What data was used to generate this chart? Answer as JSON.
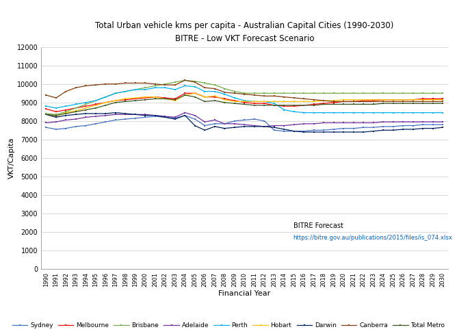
{
  "title_line1": "Total Urban vehicle kms per capita - Australian Capital Cities (1990-2030)",
  "title_line2": "BITRE - Low VKT Forecast Scenario",
  "xlabel": "Financial Year",
  "ylabel": "VKT/Capita",
  "annotation_line1": "BITRE Forecast",
  "annotation_line2": "https://bitre.gov.au/publications/2015/files/is_074.xlsx",
  "ylim": [
    0,
    12000
  ],
  "yticks": [
    0,
    1000,
    2000,
    3000,
    4000,
    5000,
    6000,
    7000,
    8000,
    9000,
    10000,
    11000,
    12000
  ],
  "years": [
    1990,
    1991,
    1992,
    1993,
    1994,
    1995,
    1996,
    1997,
    1998,
    1999,
    2000,
    2001,
    2002,
    2003,
    2004,
    2005,
    2006,
    2007,
    2008,
    2009,
    2010,
    2011,
    2012,
    2013,
    2014,
    2015,
    2016,
    2017,
    2018,
    2019,
    2020,
    2021,
    2022,
    2023,
    2024,
    2025,
    2026,
    2027,
    2028,
    2029,
    2030
  ],
  "series": {
    "Sydney": {
      "color": "#4472C4",
      "data": [
        7650,
        7550,
        7600,
        7700,
        7750,
        7850,
        7950,
        8050,
        8100,
        8150,
        8200,
        8250,
        8200,
        8150,
        8300,
        8100,
        7750,
        7850,
        7850,
        8000,
        8050,
        8100,
        8000,
        7500,
        7450,
        7450,
        7450,
        7500,
        7500,
        7550,
        7600,
        7600,
        7650,
        7650,
        7700,
        7700,
        7750,
        7750,
        7800,
        7800,
        7800
      ]
    },
    "Melbourne": {
      "color": "#FF0000",
      "data": [
        8650,
        8500,
        8600,
        8700,
        8800,
        8900,
        9000,
        9100,
        9150,
        9200,
        9250,
        9300,
        9250,
        9200,
        9500,
        9500,
        9300,
        9300,
        9200,
        9100,
        9000,
        8950,
        8950,
        8850,
        8800,
        8800,
        8850,
        8900,
        8950,
        9000,
        9050,
        9050,
        9100,
        9100,
        9150,
        9150,
        9150,
        9150,
        9200,
        9200,
        9200
      ]
    },
    "Brisbane": {
      "color": "#70AD47",
      "data": [
        8400,
        8350,
        8500,
        8700,
        8900,
        9100,
        9300,
        9500,
        9600,
        9700,
        9800,
        9900,
        10000,
        10100,
        10200,
        10150,
        10050,
        9950,
        9750,
        9600,
        9500,
        9500,
        9500,
        9500,
        9500,
        9500,
        9500,
        9500,
        9500,
        9500,
        9500,
        9500,
        9500,
        9500,
        9500,
        9500,
        9500,
        9500,
        9500,
        9500,
        9500
      ]
    },
    "Adelaide": {
      "color": "#7030A0",
      "data": [
        7900,
        7950,
        8050,
        8100,
        8200,
        8250,
        8300,
        8350,
        8350,
        8350,
        8350,
        8300,
        8250,
        8200,
        8450,
        8300,
        7950,
        8050,
        7850,
        7850,
        7800,
        7750,
        7700,
        7750,
        7750,
        7800,
        7850,
        7850,
        7900,
        7900,
        7900,
        7900,
        7900,
        7900,
        7950,
        7950,
        7950,
        7950,
        7950,
        7950,
        7950
      ]
    },
    "Perth": {
      "color": "#00B0F0",
      "data": [
        8800,
        8700,
        8800,
        8900,
        9000,
        9100,
        9300,
        9500,
        9600,
        9700,
        9700,
        9800,
        9800,
        9700,
        9900,
        9850,
        9600,
        9600,
        9450,
        9250,
        9100,
        9050,
        9050,
        8950,
        8600,
        8500,
        8450,
        8450,
        8450,
        8450,
        8450,
        8450,
        8450,
        8450,
        8450,
        8450,
        8450,
        8450,
        8450,
        8450,
        8450
      ]
    },
    "Hobart": {
      "color": "#FFC000",
      "data": [
        8350,
        8250,
        8450,
        8550,
        8700,
        8850,
        9000,
        9100,
        9200,
        9250,
        9300,
        9300,
        9200,
        9100,
        9400,
        9500,
        9300,
        9350,
        9150,
        9050,
        9050,
        9050,
        9050,
        9050,
        9050,
        9050,
        9050,
        9050,
        9100,
        9100,
        9150,
        9150,
        9150,
        9150,
        9150,
        9150,
        9150,
        9150,
        9150,
        9150,
        9150
      ]
    },
    "Darwin": {
      "color": "#002060",
      "data": [
        8350,
        8200,
        8300,
        8350,
        8400,
        8400,
        8400,
        8450,
        8400,
        8350,
        8300,
        8300,
        8200,
        8100,
        8300,
        7750,
        7500,
        7700,
        7600,
        7650,
        7700,
        7700,
        7700,
        7650,
        7550,
        7450,
        7400,
        7400,
        7400,
        7400,
        7400,
        7400,
        7400,
        7450,
        7500,
        7500,
        7550,
        7550,
        7600,
        7600,
        7650
      ]
    },
    "Canberra": {
      "color": "#843C0C",
      "data": [
        9400,
        9250,
        9600,
        9800,
        9900,
        9950,
        10000,
        10000,
        10050,
        10050,
        10050,
        10000,
        9950,
        9950,
        10200,
        10100,
        9800,
        9750,
        9550,
        9500,
        9450,
        9400,
        9350,
        9350,
        9300,
        9250,
        9200,
        9150,
        9100,
        9050,
        9050,
        9050,
        9050,
        9050,
        9050,
        9050,
        9050,
        9050,
        9050,
        9050,
        9050
      ]
    },
    "Total Metro": {
      "color": "#375623",
      "data": [
        8350,
        8300,
        8400,
        8500,
        8600,
        8700,
        8850,
        9000,
        9050,
        9100,
        9150,
        9200,
        9200,
        9150,
        9400,
        9300,
        9050,
        9100,
        9000,
        8950,
        8900,
        8850,
        8850,
        8850,
        8850,
        8850,
        8850,
        8850,
        8900,
        8900,
        8900,
        8900,
        8900,
        8900,
        8950,
        8950,
        8950,
        8950,
        8950,
        8950,
        8950
      ]
    }
  },
  "legend_order": [
    "Sydney",
    "Melbourne",
    "Brisbane",
    "Adelaide",
    "Perth",
    "Hobart",
    "Darwin",
    "Canberra",
    "Total Metro"
  ]
}
